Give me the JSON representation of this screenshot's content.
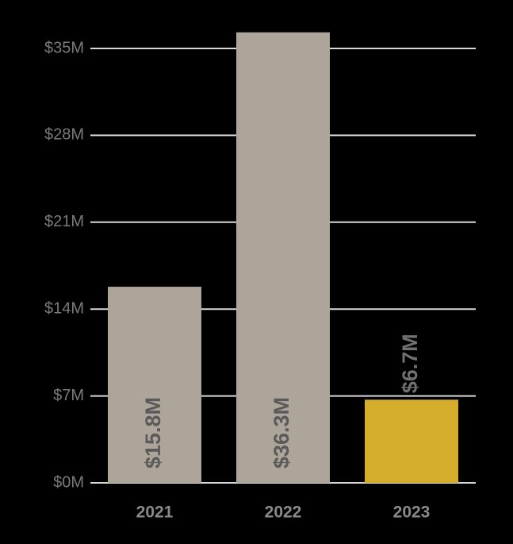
{
  "chart_data": {
    "type": "bar",
    "categories": [
      "2021",
      "2022",
      "2023"
    ],
    "values": [
      15.8,
      36.3,
      6.7
    ],
    "value_labels": [
      "$15.8M",
      "$36.3M",
      "$6.7M"
    ],
    "colors": [
      "#aea59a",
      "#aea59a",
      "#d4ad2a"
    ],
    "ylim": [
      0,
      35
    ],
    "yticks": [
      {
        "value": 0,
        "label": "$0M"
      },
      {
        "value": 7,
        "label": "$7M"
      },
      {
        "value": 14,
        "label": "$14M"
      },
      {
        "value": 21,
        "label": "$21M"
      },
      {
        "value": 28,
        "label": "$28M"
      },
      {
        "value": 35,
        "label": "$35M"
      }
    ],
    "grid": true
  }
}
